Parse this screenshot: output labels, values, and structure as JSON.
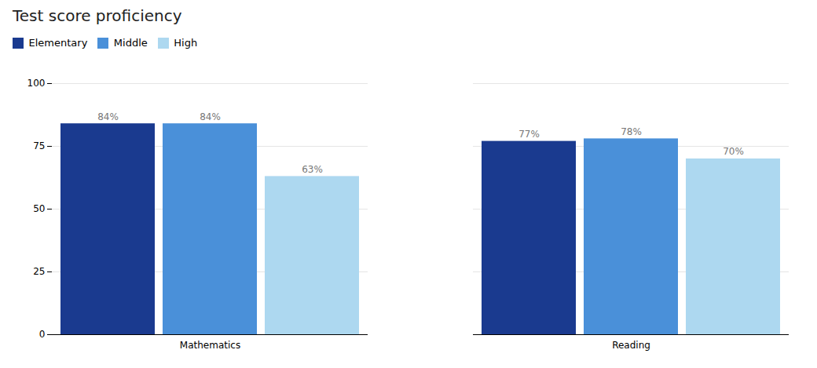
{
  "chart_data": {
    "type": "bar",
    "title": "Test score proficiency",
    "categories": [
      "Mathematics",
      "Reading"
    ],
    "series": [
      {
        "name": "Elementary",
        "color": "#1a3a8f",
        "values": [
          84,
          77
        ],
        "value_labels": [
          "84%",
          "77%"
        ]
      },
      {
        "name": "Middle",
        "color": "#4a90d9",
        "values": [
          84,
          78
        ],
        "value_labels": [
          "84%",
          "78%"
        ]
      },
      {
        "name": "High",
        "color": "#add8f0",
        "values": [
          63,
          70
        ],
        "value_labels": [
          "63%",
          "70%"
        ]
      }
    ],
    "ylim": [
      0,
      100
    ],
    "yticks": [
      0,
      25,
      50,
      75,
      100
    ],
    "grid": true,
    "data_labels": true,
    "legend": "upper left"
  }
}
